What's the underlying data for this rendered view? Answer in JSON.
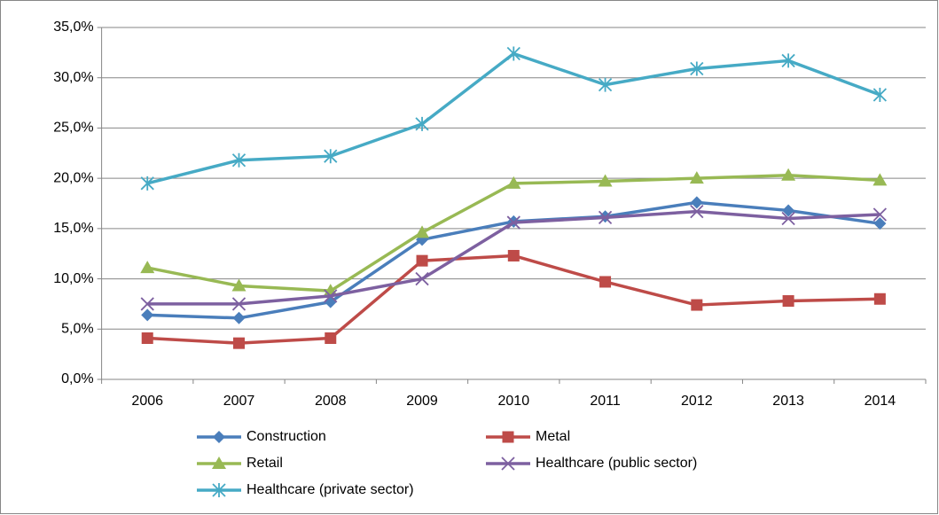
{
  "chart_data": {
    "type": "line",
    "categories": [
      "2006",
      "2007",
      "2008",
      "2009",
      "2010",
      "2011",
      "2012",
      "2013",
      "2014"
    ],
    "series": [
      {
        "name": "Construction",
        "color": "#4a7ebb",
        "marker": "diamond",
        "values": [
          6.4,
          6.1,
          7.7,
          13.9,
          15.7,
          16.2,
          17.6,
          16.8,
          15.5
        ]
      },
      {
        "name": "Metal",
        "color": "#be4b48",
        "marker": "square",
        "values": [
          4.1,
          3.6,
          4.1,
          11.8,
          12.3,
          9.7,
          7.4,
          7.8,
          8.0
        ]
      },
      {
        "name": "Retail",
        "color": "#98b954",
        "marker": "triangle",
        "values": [
          11.1,
          9.3,
          8.8,
          14.6,
          19.5,
          19.7,
          20.0,
          20.3,
          19.8
        ]
      },
      {
        "name": "Healthcare (public sector)",
        "color": "#7d60a0",
        "marker": "x",
        "values": [
          7.5,
          7.5,
          8.3,
          10.0,
          15.6,
          16.1,
          16.7,
          16.0,
          16.4
        ]
      },
      {
        "name": "Healthcare (private sector)",
        "color": "#46aac5",
        "marker": "star",
        "values": [
          19.5,
          21.8,
          22.2,
          25.4,
          32.4,
          29.3,
          30.9,
          31.7,
          28.3
        ]
      }
    ],
    "ylim": [
      0,
      35
    ],
    "yticks": [
      {
        "value": 0,
        "label": "0,0%"
      },
      {
        "value": 5,
        "label": "5,0%"
      },
      {
        "value": 10,
        "label": "10,0%"
      },
      {
        "value": 15,
        "label": "15,0%"
      },
      {
        "value": 20,
        "label": "20,0%"
      },
      {
        "value": 25,
        "label": "25,0%"
      },
      {
        "value": 30,
        "label": "30,0%"
      },
      {
        "value": 35,
        "label": "35,0%"
      }
    ],
    "grid": true
  }
}
